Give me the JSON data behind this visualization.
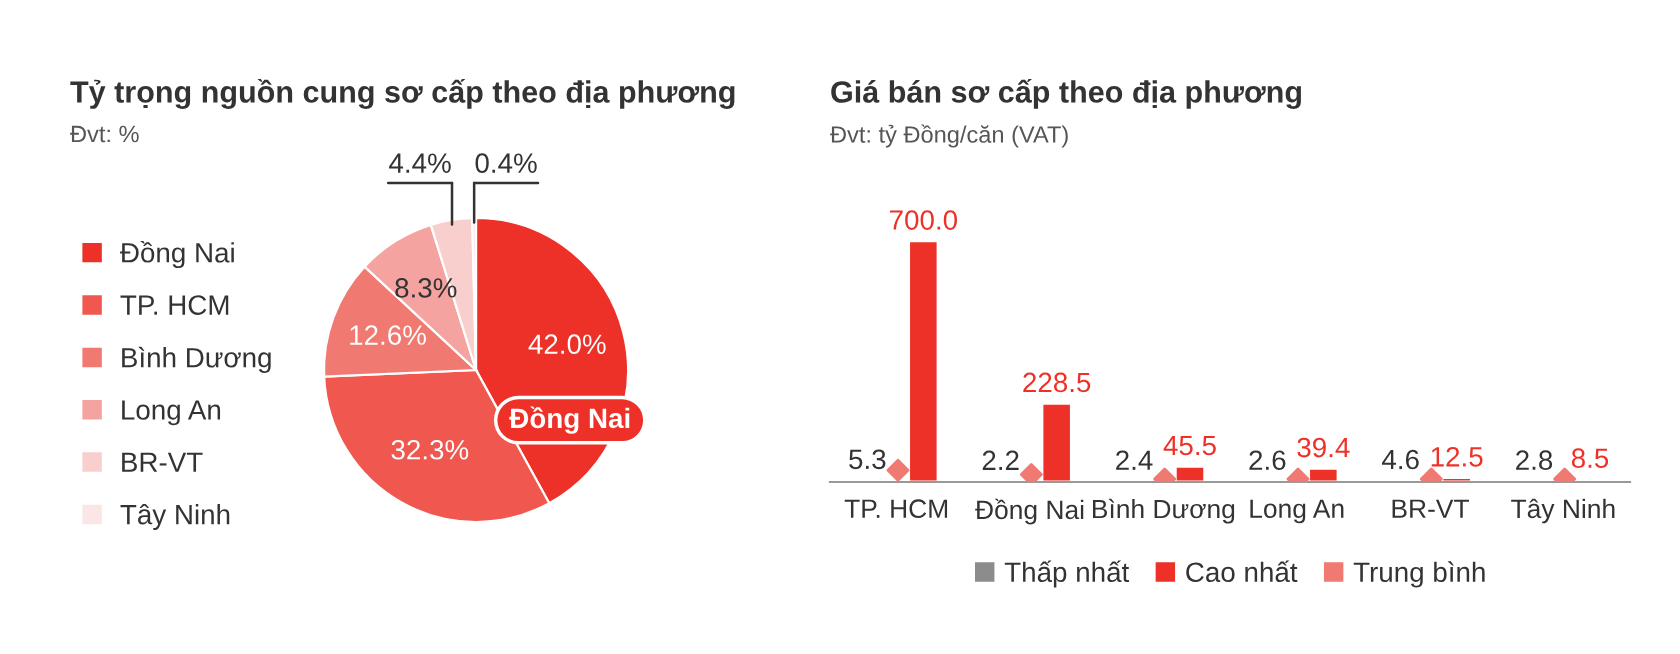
{
  "chart_data": [
    {
      "type": "pie",
      "title": "Tỷ trọng nguồn cung sơ cấp theo địa phương",
      "subtitle": "Đvt: %",
      "categories": [
        "Đồng Nai",
        "TP. HCM",
        "Bình Dương",
        "Long An",
        "BR-VT",
        "Tây Ninh"
      ],
      "values": [
        42.0,
        32.3,
        12.6,
        8.3,
        4.4,
        0.4
      ],
      "colors": [
        "#ee3128",
        "#f0584f",
        "#f07a72",
        "#f5a3a0",
        "#f9cfcd",
        "#fbe6e5"
      ],
      "value_labels": [
        "42.0%",
        "32.3%",
        "12.6%",
        "8.3%",
        "4.4%",
        "0.4%"
      ],
      "annotations": [
        "Đồng Nai"
      ],
      "legend": "left"
    },
    {
      "type": "bar",
      "title": "Giá bán sơ cấp theo địa phương",
      "subtitle": "Đvt: tỷ Đồng/căn (VAT)",
      "categories": [
        "TP. HCM",
        "Đồng Nai",
        "Bình Dương",
        "Long An",
        "BR-VT",
        "Tây Ninh"
      ],
      "series": [
        {
          "name": "Thấp nhất",
          "color": "#8c8c8c",
          "values": [
            5.3,
            2.2,
            2.4,
            2.6,
            4.6,
            2.8
          ],
          "value_labels": [
            "5.3",
            "2.2",
            "2.4",
            "2.6",
            "4.6",
            "2.8"
          ]
        },
        {
          "name": "Cao nhất",
          "color": "#ee3128",
          "values": [
            700.0,
            228.5,
            45.5,
            39.4,
            12.5,
            8.5
          ],
          "value_labels": [
            "700.0",
            "228.5",
            "45.5",
            "39.4",
            "12.5",
            "8.5"
          ]
        },
        {
          "name": "Trung bình",
          "type": "scatter",
          "color": "#f07a72",
          "values": [
            34,
            22,
            9,
            9,
            9,
            9
          ]
        }
      ],
      "marker": "diamond",
      "tick_labels": "x",
      "legend": "bottom",
      "grid": false
    }
  ]
}
